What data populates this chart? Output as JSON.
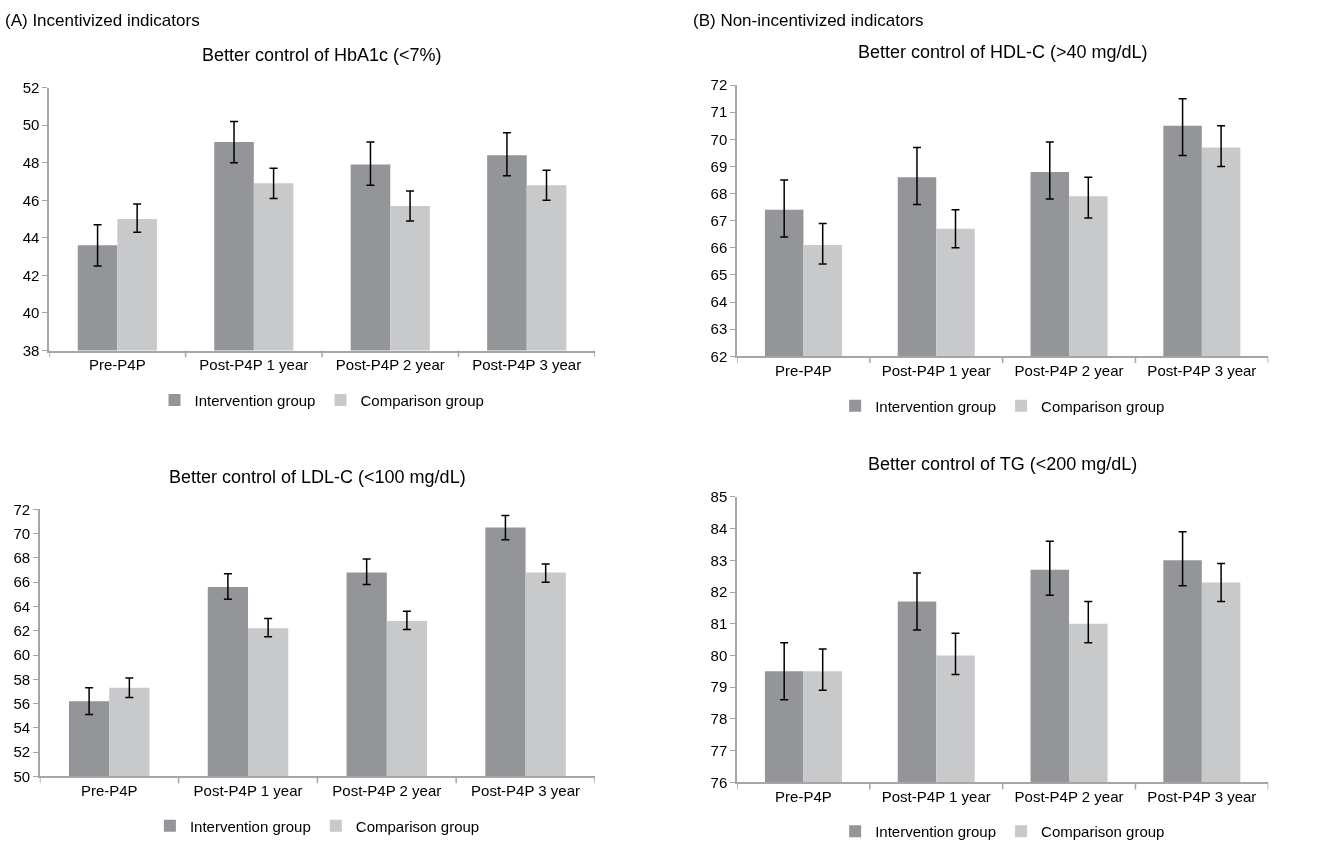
{
  "chart_data": [
    {
      "type": "bar",
      "title": "Better control of HbA1c (<7%)",
      "annotations": [
        "(A) Incentivized indicators"
      ],
      "categories": [
        "Pre-P4P",
        "Post-P4P 1 year",
        "Post-P4P 2 year",
        "Post-P4P 3 year"
      ],
      "ylim": [
        38,
        52
      ],
      "yticks": [
        38,
        40,
        42,
        44,
        46,
        48,
        50,
        52
      ],
      "legend": "bottom",
      "series": [
        {
          "name": "Intervention group",
          "color": "#939598",
          "values": [
            43.6,
            49.1,
            47.9,
            48.4
          ],
          "errors": [
            [
              42.5,
              44.7
            ],
            [
              48.0,
              50.2
            ],
            [
              46.8,
              49.1
            ],
            [
              47.3,
              49.6
            ]
          ]
        },
        {
          "name": "Comparison group",
          "color": "#c8c9cb",
          "values": [
            45.0,
            46.9,
            45.7,
            46.8
          ],
          "errors": [
            [
              44.3,
              45.8
            ],
            [
              46.1,
              47.7
            ],
            [
              44.9,
              46.5
            ],
            [
              46.0,
              47.6
            ]
          ]
        }
      ]
    },
    {
      "type": "bar",
      "title": "Better control of HDL-C (>40 mg/dL)",
      "annotations": [
        "(B) Non-incentivized indicators"
      ],
      "categories": [
        "Pre-P4P",
        "Post-P4P 1 year",
        "Post-P4P 2 year",
        "Post-P4P 3 year"
      ],
      "ylim": [
        62,
        72
      ],
      "yticks": [
        62,
        63,
        64,
        65,
        66,
        67,
        68,
        69,
        70,
        71,
        72
      ],
      "legend": "bottom",
      "series": [
        {
          "name": "Intervention group",
          "color": "#939598",
          "values": [
            67.4,
            68.6,
            68.8,
            70.5
          ],
          "errors": [
            [
              66.4,
              68.5
            ],
            [
              67.6,
              69.7
            ],
            [
              67.8,
              69.9
            ],
            [
              69.4,
              71.5
            ]
          ]
        },
        {
          "name": "Comparison group",
          "color": "#c8c9cb",
          "values": [
            66.1,
            66.7,
            67.9,
            69.7
          ],
          "errors": [
            [
              65.4,
              66.9
            ],
            [
              66.0,
              67.4
            ],
            [
              67.1,
              68.6
            ],
            [
              69.0,
              70.5
            ]
          ]
        }
      ]
    },
    {
      "type": "bar",
      "title": "Better control of LDL-C (<100 mg/dL)",
      "categories": [
        "Pre-P4P",
        "Post-P4P 1 year",
        "Post-P4P 2 year",
        "Post-P4P 3 year"
      ],
      "ylim": [
        50,
        72
      ],
      "yticks": [
        50,
        52,
        54,
        56,
        58,
        60,
        62,
        64,
        66,
        68,
        70,
        72
      ],
      "legend": "bottom",
      "series": [
        {
          "name": "Intervention group",
          "color": "#939598",
          "values": [
            56.2,
            65.6,
            66.8,
            70.5
          ],
          "errors": [
            [
              55.1,
              57.3
            ],
            [
              64.6,
              66.7
            ],
            [
              65.8,
              67.9
            ],
            [
              69.5,
              71.5
            ]
          ]
        },
        {
          "name": "Comparison group",
          "color": "#c8c9cb",
          "values": [
            57.3,
            62.2,
            62.8,
            66.8
          ],
          "errors": [
            [
              56.5,
              58.1
            ],
            [
              61.5,
              63.0
            ],
            [
              62.1,
              63.6
            ],
            [
              66.0,
              67.5
            ]
          ]
        }
      ]
    },
    {
      "type": "bar",
      "title": "Better control of TG (<200 mg/dL)",
      "categories": [
        "Pre-P4P",
        "Post-P4P 1 year",
        "Post-P4P 2 year",
        "Post-P4P 3 year"
      ],
      "ylim": [
        76,
        85
      ],
      "yticks": [
        76,
        77,
        78,
        79,
        80,
        81,
        82,
        83,
        84,
        85
      ],
      "legend": "bottom",
      "series": [
        {
          "name": "Intervention group",
          "color": "#939598",
          "values": [
            79.5,
            81.7,
            82.7,
            83.0
          ],
          "errors": [
            [
              78.6,
              80.4
            ],
            [
              80.8,
              82.6
            ],
            [
              81.9,
              83.6
            ],
            [
              82.2,
              83.9
            ]
          ]
        },
        {
          "name": "Comparison group",
          "color": "#c8c9cb",
          "values": [
            79.5,
            80.0,
            81.0,
            82.3
          ],
          "errors": [
            [
              78.9,
              80.2
            ],
            [
              79.4,
              80.7
            ],
            [
              80.4,
              81.7
            ],
            [
              81.7,
              82.9
            ]
          ]
        }
      ]
    }
  ]
}
